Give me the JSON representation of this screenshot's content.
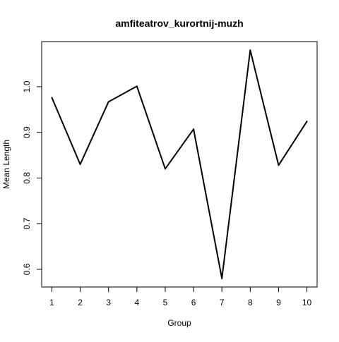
{
  "chart_data": {
    "type": "line",
    "title": "amfiteatrov_kurortnij-muzh",
    "xlabel": "Group",
    "ylabel": "Mean Length",
    "x": [
      1,
      2,
      3,
      4,
      5,
      6,
      7,
      8,
      9,
      10
    ],
    "series": [
      {
        "values": [
          0.976,
          0.83,
          0.967,
          1.001,
          0.82,
          0.907,
          0.58,
          1.08,
          0.828,
          0.924
        ]
      }
    ],
    "xticks": [
      "1",
      "2",
      "3",
      "4",
      "5",
      "6",
      "7",
      "8",
      "9",
      "10"
    ],
    "yticks": [
      "0.6",
      "0.7",
      "0.8",
      "0.9",
      "1.0"
    ],
    "xlim": [
      0.64,
      10.36
    ],
    "ylim": [
      0.5612,
      1.0988
    ],
    "grid": false,
    "line_color": "#000000"
  }
}
